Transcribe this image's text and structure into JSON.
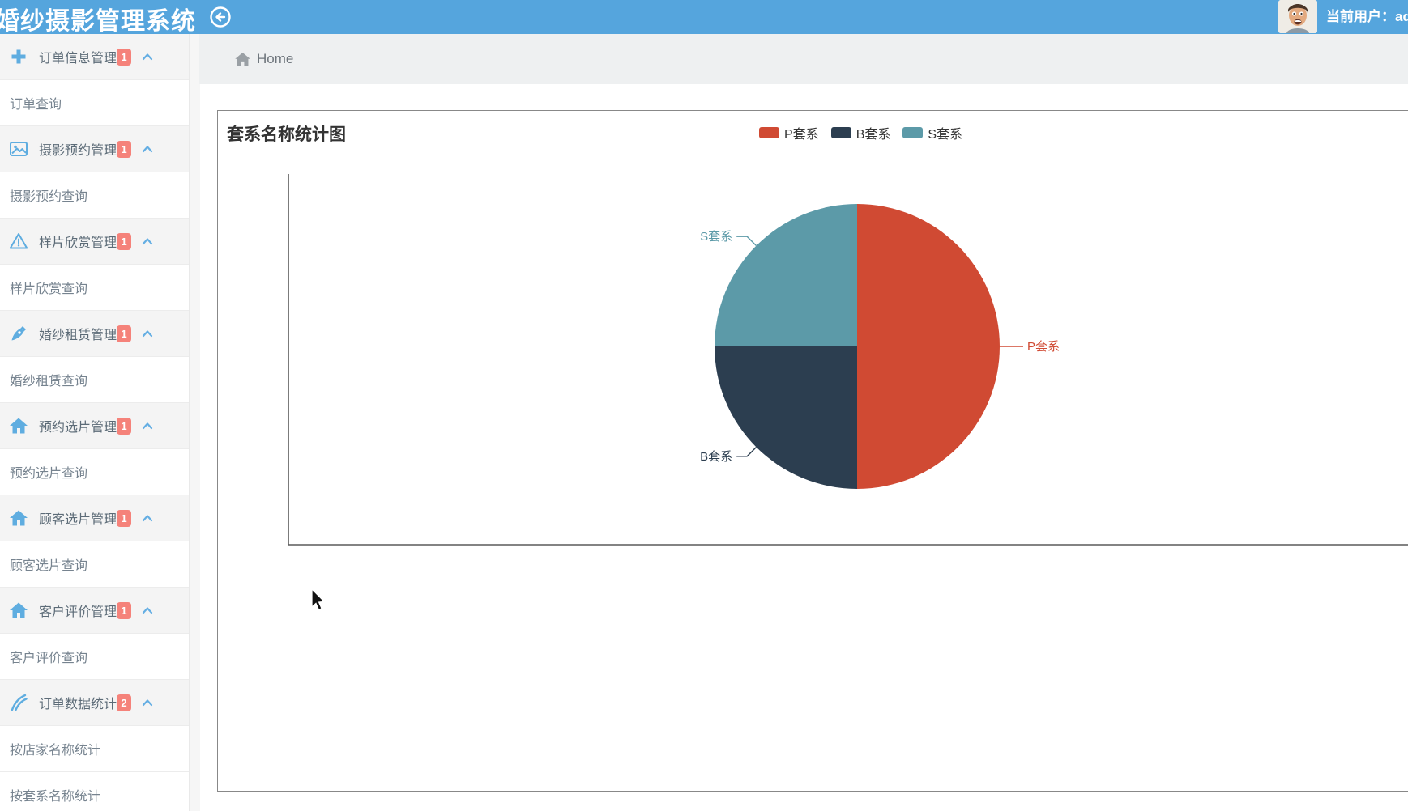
{
  "app": {
    "title": "婚纱摄影管理系统",
    "header_color": "#55a5dd",
    "accent_color": "#5fade0"
  },
  "header": {
    "back_icon": "circle-back-arrow-icon",
    "avatar_icon": "user-avatar-photo",
    "current_user_label": "当前用户：adm"
  },
  "breadcrumb": {
    "home_icon": "home-icon",
    "home_label": "Home"
  },
  "sidebar": {
    "badge_color": "#f5827a",
    "groups": [
      {
        "icon": "plus-icon",
        "label": "订单信息管理",
        "badge": "1",
        "children": [
          "订单查询"
        ]
      },
      {
        "icon": "image-icon",
        "label": "摄影预约管理",
        "badge": "1",
        "children": [
          "摄影预约查询"
        ]
      },
      {
        "icon": "warning-triangle-icon",
        "label": "样片欣赏管理",
        "badge": "1",
        "children": [
          "样片欣赏查询"
        ]
      },
      {
        "icon": "pen-nib-icon",
        "label": "婚纱租赁管理",
        "badge": "1",
        "children": [
          "婚纱租赁查询"
        ]
      },
      {
        "icon": "home-icon",
        "label": "预约选片管理",
        "badge": "1",
        "children": [
          "预约选片查询"
        ]
      },
      {
        "icon": "home-icon",
        "label": "顾客选片管理",
        "badge": "1",
        "children": [
          "顾客选片查询"
        ]
      },
      {
        "icon": "home-icon",
        "label": "客户评价管理",
        "badge": "1",
        "children": [
          "客户评价查询"
        ]
      },
      {
        "icon": "feather-icon",
        "label": "订单数据统计",
        "badge": "2",
        "children": [
          "按店家名称统计",
          "按套系名称统计"
        ]
      }
    ]
  },
  "panel": {
    "title": "套系名称统计图"
  },
  "chart_data": {
    "type": "pie",
    "title": "套系名称统计图",
    "legend": [
      "P套系",
      "B套系",
      "S套系"
    ],
    "legend_position": "top-right",
    "series": [
      {
        "name": "P套系",
        "share": 0.5,
        "color": "#d04a33"
      },
      {
        "name": "B套系",
        "share": 0.25,
        "color": "#2c3e50"
      },
      {
        "name": "S套系",
        "share": 0.25,
        "color": "#5c9aa8"
      }
    ],
    "slice_labels_shown": [
      "S套系",
      "B套系",
      "P套系"
    ]
  }
}
